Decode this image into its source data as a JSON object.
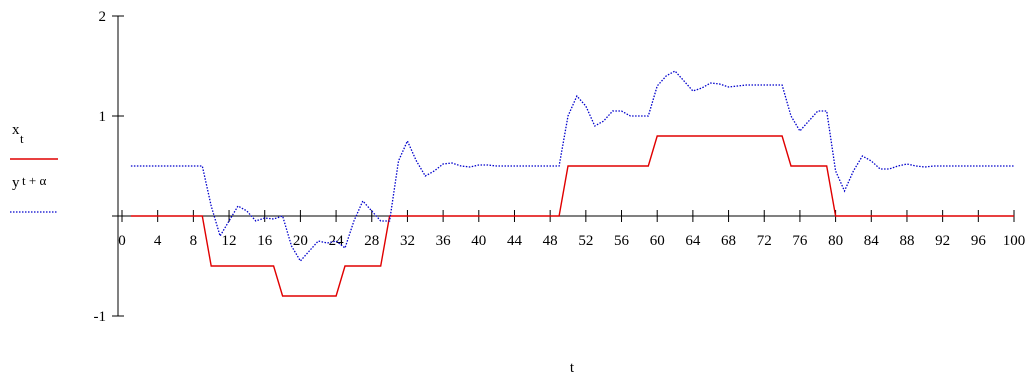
{
  "chart_data": {
    "type": "line",
    "xlabel": "t",
    "ylabel": "",
    "xlim": [
      0,
      100
    ],
    "ylim": [
      -1,
      2
    ],
    "x_ticks": [
      "0",
      "4",
      "8",
      "12",
      "16",
      "20",
      "24",
      "28",
      "32",
      "36",
      "40",
      "44",
      "48",
      "52",
      "56",
      "60",
      "64",
      "68",
      "72",
      "76",
      "80",
      "84",
      "88",
      "92",
      "96",
      "100"
    ],
    "y_ticks": [
      "2",
      "1",
      "-1"
    ],
    "legend": {
      "placement": "left",
      "entries": [
        {
          "main": "x",
          "sub": "t",
          "color": "#e00000",
          "style": "solid"
        },
        {
          "main": "y",
          "sub": "t + α",
          "color": "#0000cc",
          "style": "dotted"
        }
      ]
    },
    "series": [
      {
        "color": "#e00000",
        "style": "solid",
        "points": [
          [
            1,
            0
          ],
          [
            9,
            0
          ],
          [
            10,
            -0.5
          ],
          [
            17,
            -0.5
          ],
          [
            18,
            -0.8
          ],
          [
            24,
            -0.8
          ],
          [
            25,
            -0.5
          ],
          [
            29,
            -0.5
          ],
          [
            30,
            0
          ],
          [
            49,
            0
          ],
          [
            50,
            0.5
          ],
          [
            59,
            0.5
          ],
          [
            60,
            0.8
          ],
          [
            74,
            0.8
          ],
          [
            75,
            0.5
          ],
          [
            79,
            0.5
          ],
          [
            80,
            0
          ],
          [
            100,
            0
          ]
        ]
      },
      {
        "color": "#0000cc",
        "style": "dotted",
        "points": [
          [
            1,
            0.5
          ],
          [
            9,
            0.5
          ],
          [
            10,
            0.1
          ],
          [
            11,
            -0.2
          ],
          [
            12,
            -0.05
          ],
          [
            13,
            0.1
          ],
          [
            14,
            0.05
          ],
          [
            15,
            -0.05
          ],
          [
            16,
            -0.02
          ],
          [
            17,
            -0.03
          ],
          [
            18,
            0.0
          ],
          [
            19,
            -0.3
          ],
          [
            20,
            -0.45
          ],
          [
            21,
            -0.35
          ],
          [
            22,
            -0.25
          ],
          [
            23,
            -0.27
          ],
          [
            24,
            -0.25
          ],
          [
            25,
            -0.32
          ],
          [
            26,
            -0.05
          ],
          [
            27,
            0.15
          ],
          [
            28,
            0.05
          ],
          [
            29,
            -0.05
          ],
          [
            30,
            -0.05
          ],
          [
            31,
            0.55
          ],
          [
            32,
            0.75
          ],
          [
            33,
            0.55
          ],
          [
            34,
            0.4
          ],
          [
            35,
            0.45
          ],
          [
            36,
            0.52
          ],
          [
            37,
            0.53
          ],
          [
            38,
            0.5
          ],
          [
            39,
            0.49
          ],
          [
            40,
            0.51
          ],
          [
            41,
            0.51
          ],
          [
            42,
            0.5
          ],
          [
            49,
            0.5
          ],
          [
            50,
            1.0
          ],
          [
            51,
            1.2
          ],
          [
            52,
            1.1
          ],
          [
            53,
            0.9
          ],
          [
            54,
            0.95
          ],
          [
            55,
            1.05
          ],
          [
            56,
            1.05
          ],
          [
            57,
            1.0
          ],
          [
            58,
            1.0
          ],
          [
            59,
            1.0
          ],
          [
            60,
            1.3
          ],
          [
            61,
            1.4
          ],
          [
            62,
            1.45
          ],
          [
            63,
            1.35
          ],
          [
            64,
            1.25
          ],
          [
            65,
            1.28
          ],
          [
            66,
            1.33
          ],
          [
            67,
            1.32
          ],
          [
            68,
            1.29
          ],
          [
            69,
            1.3
          ],
          [
            70,
            1.31
          ],
          [
            74,
            1.31
          ],
          [
            75,
            1.0
          ],
          [
            76,
            0.85
          ],
          [
            77,
            0.95
          ],
          [
            78,
            1.05
          ],
          [
            79,
            1.05
          ],
          [
            80,
            0.45
          ],
          [
            81,
            0.25
          ],
          [
            82,
            0.45
          ],
          [
            83,
            0.6
          ],
          [
            84,
            0.55
          ],
          [
            85,
            0.47
          ],
          [
            86,
            0.47
          ],
          [
            87,
            0.5
          ],
          [
            88,
            0.52
          ],
          [
            89,
            0.5
          ],
          [
            90,
            0.49
          ],
          [
            91,
            0.5
          ],
          [
            100,
            0.5
          ]
        ]
      }
    ]
  }
}
